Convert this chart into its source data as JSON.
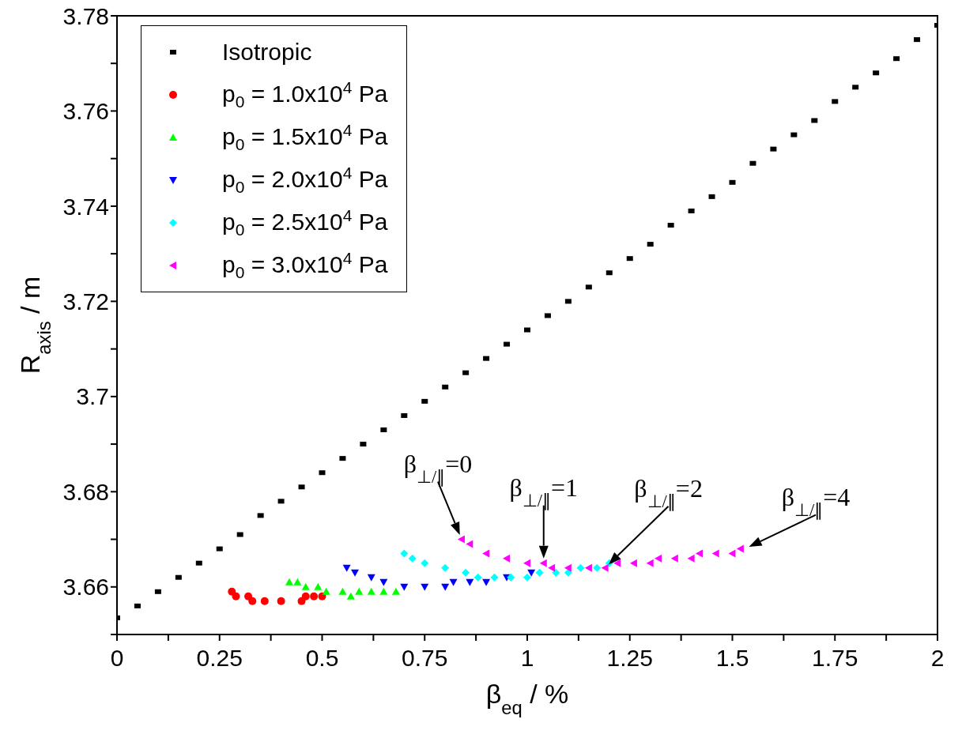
{
  "chart_data": {
    "type": "scatter",
    "xlabel": "β$_{eq}$ / %",
    "ylabel": "R$_{axis}$ / m",
    "xlim": [
      0,
      2
    ],
    "ylim": [
      3.65,
      3.78
    ],
    "xticks": [
      0,
      {
        "value": 0.125,
        "label": null
      },
      0.25,
      {
        "value": 0.375,
        "label": null
      },
      0.5,
      {
        "value": 0.625,
        "label": null
      },
      0.75,
      {
        "value": 0.875,
        "label": null
      },
      1,
      {
        "value": 1.125,
        "label": null
      },
      1.25,
      {
        "value": 1.375,
        "label": null
      },
      1.5,
      {
        "value": 1.625,
        "label": null
      },
      1.75,
      {
        "value": 1.875,
        "label": null
      },
      2
    ],
    "yticks": [
      {
        "value": 3.65,
        "label": null
      },
      3.66,
      {
        "value": 3.67,
        "label": null
      },
      3.68,
      {
        "value": 3.69,
        "label": null
      },
      3.7,
      {
        "value": 3.71,
        "label": null
      },
      3.72,
      {
        "value": 3.73,
        "label": null
      },
      3.74,
      {
        "value": 3.75,
        "label": null
      },
      3.76,
      {
        "value": 3.77,
        "label": null
      },
      3.78
    ],
    "legend": "top left",
    "series": [
      {
        "name": "Isotropic",
        "color": "#000000",
        "marker": "square",
        "x": [
          0,
          0.05,
          0.1,
          0.15,
          0.2,
          0.25,
          0.3,
          0.35,
          0.4,
          0.45,
          0.5,
          0.55,
          0.6,
          0.65,
          0.7,
          0.75,
          0.8,
          0.85,
          0.9,
          0.95,
          1,
          1.05,
          1.1,
          1.15,
          1.2,
          1.25,
          1.3,
          1.35,
          1.4,
          1.45,
          1.5,
          1.55,
          1.6,
          1.65,
          1.7,
          1.75,
          1.8,
          1.85,
          1.9,
          1.95,
          2
        ],
        "values": [
          3.6535,
          3.656,
          3.659,
          3.662,
          3.665,
          3.668,
          3.671,
          3.675,
          3.678,
          3.681,
          3.684,
          3.687,
          3.69,
          3.693,
          3.696,
          3.699,
          3.702,
          3.705,
          3.708,
          3.711,
          3.714,
          3.717,
          3.72,
          3.723,
          3.726,
          3.729,
          3.732,
          3.736,
          3.739,
          3.742,
          3.745,
          3.749,
          3.752,
          3.755,
          3.758,
          3.762,
          3.765,
          3.768,
          3.771,
          3.775,
          3.778
        ]
      },
      {
        "name": "p$_{0}$ = 1.0x10$^{4}$ Pa",
        "color": "#ff0000",
        "marker": "circle",
        "x": [
          0.28,
          0.29,
          0.32,
          0.33,
          0.36,
          0.4,
          0.45,
          0.46,
          0.48,
          0.5
        ],
        "values": [
          3.659,
          3.658,
          3.658,
          3.657,
          3.657,
          3.657,
          3.657,
          3.658,
          3.658,
          3.658
        ]
      },
      {
        "name": "p$_{0}$ = 1.5x10$^{4}$ Pa",
        "color": "#00ff00",
        "marker": "triangle",
        "x": [
          0.42,
          0.44,
          0.46,
          0.49,
          0.51,
          0.55,
          0.57,
          0.59,
          0.62,
          0.65,
          0.68
        ],
        "values": [
          3.661,
          3.661,
          3.66,
          3.66,
          3.659,
          3.659,
          3.658,
          3.659,
          3.659,
          3.659,
          3.659
        ]
      },
      {
        "name": "p$_{0}$ = 2.0x10$^{4}$ Pa",
        "color": "#0000ff",
        "marker": "triangle-down",
        "x": [
          0.56,
          0.58,
          0.62,
          0.65,
          0.7,
          0.75,
          0.8,
          0.82,
          0.86,
          0.9,
          0.95,
          1.01
        ],
        "values": [
          3.664,
          3.663,
          3.662,
          3.661,
          3.66,
          3.66,
          3.66,
          3.661,
          3.661,
          3.661,
          3.662,
          3.663
        ]
      },
      {
        "name": "p$_{0}$ = 2.5x10$^{4}$ Pa",
        "color": "#00ffff",
        "marker": "diamond",
        "x": [
          0.7,
          0.72,
          0.75,
          0.8,
          0.85,
          0.88,
          0.92,
          0.96,
          1,
          1.03,
          1.07,
          1.1,
          1.13,
          1.17,
          1.2
        ],
        "values": [
          3.667,
          3.666,
          3.665,
          3.664,
          3.663,
          3.662,
          3.662,
          3.662,
          3.662,
          3.663,
          3.663,
          3.663,
          3.664,
          3.664,
          3.665
        ]
      },
      {
        "name": "p$_{0}$ = 3.0x10$^{4}$ Pa",
        "color": "#ff00ff",
        "marker": "triangle-left",
        "x": [
          0.84,
          0.86,
          0.9,
          0.95,
          1,
          1.04,
          1.06,
          1.1,
          1.15,
          1.19,
          1.22,
          1.26,
          1.3,
          1.32,
          1.36,
          1.4,
          1.42,
          1.46,
          1.5,
          1.52
        ],
        "values": [
          3.67,
          3.669,
          3.667,
          3.666,
          3.665,
          3.665,
          3.664,
          3.664,
          3.664,
          3.664,
          3.665,
          3.665,
          3.665,
          3.666,
          3.666,
          3.666,
          3.667,
          3.667,
          3.667,
          3.668
        ]
      }
    ],
    "annotations": [
      {
        "text": "β$_{⊥/∥}$=0",
        "x": 0.84,
        "y": 3.67
      },
      {
        "text": "β$_{⊥/∥}$=1",
        "x": 1.04,
        "y": 3.665
      },
      {
        "text": "β$_{⊥/∥}$=2",
        "x": 1.19,
        "y": 3.664
      },
      {
        "text": "β$_{⊥/∥}$=4",
        "x": 1.53,
        "y": 3.668
      }
    ]
  }
}
